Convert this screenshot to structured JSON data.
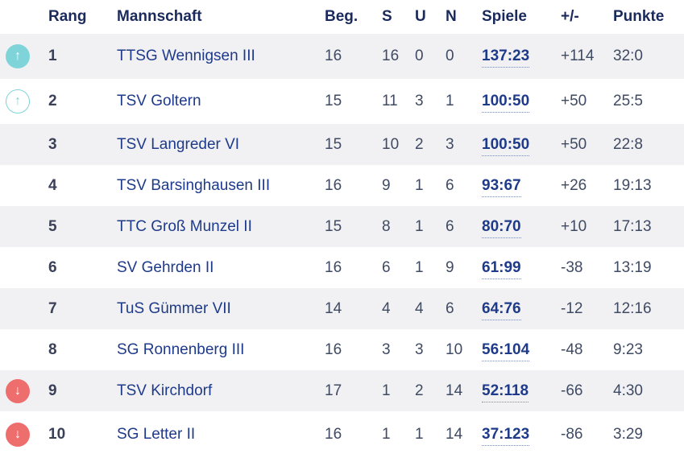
{
  "headers": {
    "rank": "Rang",
    "team": "Mannschaft",
    "played": "Beg.",
    "wins": "S",
    "draws": "U",
    "losses": "N",
    "games": "Spiele",
    "diff": "+/-",
    "points": "Punkte"
  },
  "rows": [
    {
      "trend": "up-filled",
      "trend_icon": "↑",
      "rank": "1",
      "team": "TTSG Wennigsen III",
      "played": "16",
      "wins": "16",
      "draws": "0",
      "losses": "0",
      "games": "137:23",
      "diff": "+114",
      "points": "32:0"
    },
    {
      "trend": "up-outline",
      "trend_icon": "↑",
      "rank": "2",
      "team": "TSV Goltern",
      "played": "15",
      "wins": "11",
      "draws": "3",
      "losses": "1",
      "games": "100:50",
      "diff": "+50",
      "points": "25:5"
    },
    {
      "trend": "",
      "trend_icon": "",
      "rank": "3",
      "team": "TSV Langreder VI",
      "played": "15",
      "wins": "10",
      "draws": "2",
      "losses": "3",
      "games": "100:50",
      "diff": "+50",
      "points": "22:8"
    },
    {
      "trend": "",
      "trend_icon": "",
      "rank": "4",
      "team": "TSV Barsinghausen III",
      "played": "16",
      "wins": "9",
      "draws": "1",
      "losses": "6",
      "games": "93:67",
      "diff": "+26",
      "points": "19:13"
    },
    {
      "trend": "",
      "trend_icon": "",
      "rank": "5",
      "team": "TTC Groß Munzel II",
      "played": "15",
      "wins": "8",
      "draws": "1",
      "losses": "6",
      "games": "80:70",
      "diff": "+10",
      "points": "17:13"
    },
    {
      "trend": "",
      "trend_icon": "",
      "rank": "6",
      "team": "SV Gehrden II",
      "played": "16",
      "wins": "6",
      "draws": "1",
      "losses": "9",
      "games": "61:99",
      "diff": "-38",
      "points": "13:19"
    },
    {
      "trend": "",
      "trend_icon": "",
      "rank": "7",
      "team": "TuS Gümmer VII",
      "played": "14",
      "wins": "4",
      "draws": "4",
      "losses": "6",
      "games": "64:76",
      "diff": "-12",
      "points": "12:16"
    },
    {
      "trend": "",
      "trend_icon": "",
      "rank": "8",
      "team": "SG Ronnenberg III",
      "played": "16",
      "wins": "3",
      "draws": "3",
      "losses": "10",
      "games": "56:104",
      "diff": "-48",
      "points": "9:23"
    },
    {
      "trend": "down-filled",
      "trend_icon": "↓",
      "rank": "9",
      "team": "TSV Kirchdorf",
      "played": "17",
      "wins": "1",
      "draws": "2",
      "losses": "14",
      "games": "52:118",
      "diff": "-66",
      "points": "4:30"
    },
    {
      "trend": "down-filled",
      "trend_icon": "↓",
      "rank": "10",
      "team": "SG Letter II",
      "played": "16",
      "wins": "1",
      "draws": "1",
      "losses": "14",
      "games": "37:123",
      "diff": "-86",
      "points": "3:29"
    }
  ],
  "colors": {
    "header_text": "#1b2a5c",
    "team_link": "#1e3a8a",
    "stripe": "#f1f1f3",
    "promotion": "#7fd4d9",
    "relegation": "#ee6e6e"
  }
}
